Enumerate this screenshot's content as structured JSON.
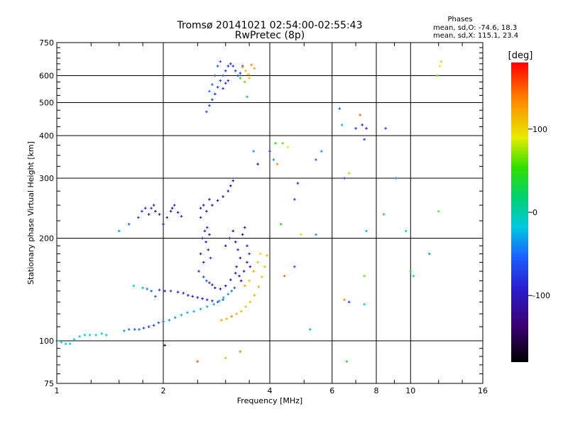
{
  "chart_data": {
    "type": "scatter",
    "title": "Tromsø 20141021 02:54:00-02:55:43",
    "subtitle": "RwPretec (8p)",
    "xlabel": "Frequency [MHz]",
    "ylabel": "Stationary phase Virtual Height [km]",
    "x_scale": "log",
    "y_scale": "log",
    "xlim": [
      1,
      16
    ],
    "ylim": [
      75,
      750
    ],
    "grid": true,
    "x_ticks": [
      "1",
      "2",
      "4",
      "6",
      "8",
      "10",
      "16"
    ],
    "y_ticks": [
      "75",
      "100",
      "200",
      "300",
      "400",
      "500",
      "600",
      "750"
    ],
    "phases": {
      "title": "Phases",
      "lines": [
        "mean, sd,O: -74.6, 18.3",
        "mean, sd,X: 115.1, 23.4"
      ]
    },
    "colorbar": {
      "label": "[deg]",
      "range": [
        -180,
        180
      ],
      "ticks": [
        "100",
        "0",
        "-100"
      ],
      "colors": [
        "#000000",
        "#3a0070",
        "#2a1fd0",
        "#1a5fff",
        "#00c8e0",
        "#00d070",
        "#30e000",
        "#e8ec00",
        "#ff8c00",
        "#ff0000"
      ]
    },
    "points": [
      [
        1.0,
        100,
        -20
      ],
      [
        1.03,
        99,
        -20
      ],
      [
        1.06,
        98,
        -20
      ],
      [
        1.09,
        98,
        -20
      ],
      [
        1.12,
        101,
        -20
      ],
      [
        1.16,
        103,
        -20
      ],
      [
        1.2,
        104,
        -20
      ],
      [
        1.24,
        104,
        -20
      ],
      [
        1.29,
        104,
        -20
      ],
      [
        1.34,
        105,
        -20
      ],
      [
        1.38,
        104,
        -20
      ],
      [
        1.55,
        107,
        -40
      ],
      [
        1.6,
        108,
        -50
      ],
      [
        1.66,
        108,
        -60
      ],
      [
        1.71,
        108,
        -60
      ],
      [
        1.76,
        109,
        -70
      ],
      [
        1.82,
        110,
        -80
      ],
      [
        1.88,
        111,
        -80
      ],
      [
        1.94,
        113,
        -70
      ],
      [
        2.0,
        114,
        -60
      ],
      [
        2.08,
        115,
        -40
      ],
      [
        2.16,
        117,
        -40
      ],
      [
        2.25,
        119,
        -30
      ],
      [
        2.34,
        121,
        -30
      ],
      [
        2.44,
        122,
        -30
      ],
      [
        2.55,
        124,
        -30
      ],
      [
        2.66,
        126,
        -30
      ],
      [
        2.78,
        128,
        -30
      ],
      [
        2.88,
        131,
        -30
      ],
      [
        2.96,
        134,
        -30
      ],
      [
        3.05,
        137,
        -40
      ],
      [
        3.12,
        140,
        -50
      ],
      [
        3.18,
        143,
        -70
      ],
      [
        1.65,
        145,
        -10
      ],
      [
        1.75,
        143,
        -30
      ],
      [
        1.8,
        142,
        -50
      ],
      [
        1.85,
        140,
        -60
      ],
      [
        1.9,
        135,
        -70
      ],
      [
        1.95,
        141,
        -80
      ],
      [
        2.02,
        140,
        -90
      ],
      [
        2.1,
        140,
        -80
      ],
      [
        2.2,
        139,
        -90
      ],
      [
        2.28,
        138,
        -95
      ],
      [
        2.35,
        136,
        -100
      ],
      [
        2.42,
        135,
        -110
      ],
      [
        2.5,
        134,
        -100
      ],
      [
        2.58,
        133,
        -100
      ],
      [
        2.66,
        132,
        -90
      ],
      [
        2.75,
        131,
        -80
      ],
      [
        2.85,
        130,
        -70
      ],
      [
        2.95,
        132,
        -60
      ],
      [
        2.6,
        154,
        -80
      ],
      [
        2.65,
        150,
        -60
      ],
      [
        2.7,
        148,
        -90
      ],
      [
        2.75,
        146,
        -100
      ],
      [
        2.8,
        143,
        -110
      ],
      [
        2.9,
        142,
        -110
      ],
      [
        3.0,
        145,
        -110
      ],
      [
        3.1,
        151,
        -110
      ],
      [
        3.2,
        158,
        -110
      ],
      [
        2.0,
        220,
        -110
      ],
      [
        2.05,
        230,
        -90
      ],
      [
        1.85,
        245,
        -80
      ],
      [
        1.9,
        240,
        -110
      ],
      [
        1.95,
        235,
        -100
      ],
      [
        2.1,
        240,
        -120
      ],
      [
        2.2,
        238,
        -110
      ],
      [
        1.88,
        250,
        -100
      ],
      [
        1.82,
        235,
        -110
      ],
      [
        2.15,
        250,
        -95
      ],
      [
        2.25,
        232,
        -90
      ],
      [
        2.12,
        245,
        -120
      ],
      [
        1.78,
        245,
        -90
      ],
      [
        1.74,
        240,
        -90
      ],
      [
        1.7,
        230,
        -80
      ],
      [
        1.6,
        220,
        -60
      ],
      [
        1.5,
        210,
        -40
      ],
      [
        2.55,
        230,
        -90
      ],
      [
        2.65,
        240,
        -100
      ],
      [
        2.75,
        250,
        -110
      ],
      [
        2.85,
        258,
        -110
      ],
      [
        2.95,
        265,
        -110
      ],
      [
        3.05,
        275,
        -110
      ],
      [
        3.1,
        285,
        -120
      ],
      [
        3.15,
        295,
        -110
      ],
      [
        2.6,
        250,
        -100
      ],
      [
        2.7,
        260,
        -110
      ],
      [
        2.55,
        245,
        -95
      ],
      [
        2.58,
        200,
        -110
      ],
      [
        2.62,
        210,
        -100
      ],
      [
        2.66,
        215,
        -90
      ],
      [
        2.7,
        205,
        -110
      ],
      [
        2.64,
        195,
        -100
      ],
      [
        2.68,
        185,
        -90
      ],
      [
        2.72,
        175,
        -80
      ],
      [
        2.6,
        170,
        -100
      ],
      [
        2.55,
        180,
        -100
      ],
      [
        2.52,
        160,
        -90
      ],
      [
        3.0,
        190,
        -110
      ],
      [
        3.08,
        200,
        -110
      ],
      [
        3.15,
        210,
        -120
      ],
      [
        3.2,
        195,
        -110
      ],
      [
        3.25,
        185,
        -100
      ],
      [
        3.3,
        175,
        -110
      ],
      [
        3.35,
        205,
        -120
      ],
      [
        3.4,
        215,
        -110
      ],
      [
        3.45,
        190,
        -100
      ],
      [
        3.5,
        180,
        -90
      ],
      [
        3.22,
        165,
        -100
      ],
      [
        3.28,
        155,
        -110
      ],
      [
        3.32,
        150,
        -120
      ],
      [
        3.38,
        160,
        -110
      ],
      [
        3.45,
        170,
        -100
      ],
      [
        3.52,
        165,
        -110
      ],
      [
        2.65,
        470,
        -70
      ],
      [
        2.7,
        490,
        -80
      ],
      [
        2.75,
        510,
        -80
      ],
      [
        2.8,
        530,
        -90
      ],
      [
        2.85,
        555,
        -80
      ],
      [
        2.9,
        580,
        -80
      ],
      [
        2.95,
        600,
        -70
      ],
      [
        3.0,
        620,
        -80
      ],
      [
        3.05,
        640,
        -80
      ],
      [
        3.1,
        650,
        -90
      ],
      [
        3.15,
        640,
        -80
      ],
      [
        3.2,
        620,
        -80
      ],
      [
        3.25,
        600,
        -90
      ],
      [
        3.3,
        610,
        -80
      ],
      [
        3.35,
        640,
        -80
      ],
      [
        2.7,
        540,
        -50
      ],
      [
        2.75,
        565,
        -60
      ],
      [
        2.8,
        600,
        -70
      ],
      [
        2.85,
        640,
        -60
      ],
      [
        2.9,
        660,
        -70
      ],
      [
        2.95,
        550,
        -90
      ],
      [
        3.0,
        570,
        -90
      ],
      [
        3.05,
        580,
        -90
      ],
      [
        2.92,
        115,
        120
      ],
      [
        3.02,
        116,
        120
      ],
      [
        3.12,
        118,
        130
      ],
      [
        3.22,
        120,
        120
      ],
      [
        3.32,
        122,
        110
      ],
      [
        3.42,
        126,
        110
      ],
      [
        3.52,
        130,
        110
      ],
      [
        3.62,
        136,
        120
      ],
      [
        3.72,
        144,
        120
      ],
      [
        3.8,
        154,
        110
      ],
      [
        3.87,
        165,
        110
      ],
      [
        3.93,
        178,
        110
      ],
      [
        3.4,
        145,
        120
      ],
      [
        3.5,
        150,
        110
      ],
      [
        3.6,
        160,
        120
      ],
      [
        3.7,
        170,
        110
      ],
      [
        3.76,
        180,
        100
      ],
      [
        3.35,
        635,
        120
      ],
      [
        3.42,
        620,
        110
      ],
      [
        3.48,
        605,
        120
      ],
      [
        3.55,
        645,
        130
      ],
      [
        3.62,
        630,
        120
      ],
      [
        3.5,
        590,
        110
      ],
      [
        3.3,
        590,
        40
      ],
      [
        3.4,
        575,
        60
      ],
      [
        3.45,
        520,
        20
      ],
      [
        3.6,
        360,
        -40
      ],
      [
        3.7,
        330,
        -120
      ],
      [
        4.0,
        360,
        -90
      ],
      [
        4.1,
        340,
        -40
      ],
      [
        4.15,
        380,
        40
      ],
      [
        4.2,
        330,
        130
      ],
      [
        4.35,
        380,
        60
      ],
      [
        4.5,
        370,
        90
      ],
      [
        4.7,
        260,
        -80
      ],
      [
        4.8,
        290,
        -90
      ],
      [
        5.4,
        340,
        -60
      ],
      [
        5.6,
        360,
        -40
      ],
      [
        6.3,
        480,
        -60
      ],
      [
        6.4,
        430,
        -30
      ],
      [
        6.5,
        300,
        -80
      ],
      [
        6.7,
        310,
        110
      ],
      [
        7.0,
        420,
        -80
      ],
      [
        7.2,
        460,
        140
      ],
      [
        7.3,
        430,
        -100
      ],
      [
        7.4,
        390,
        -80
      ],
      [
        7.5,
        420,
        -100
      ],
      [
        8.5,
        420,
        -80
      ],
      [
        9.1,
        300,
        -50
      ],
      [
        9.7,
        210,
        -20
      ],
      [
        10.0,
        160,
        40
      ],
      [
        10.2,
        155,
        -20
      ],
      [
        11.3,
        180,
        -40
      ],
      [
        12.0,
        240,
        60
      ],
      [
        11.9,
        600,
        50
      ],
      [
        12.1,
        640,
        90
      ],
      [
        12.2,
        660,
        80
      ],
      [
        2.5,
        87,
        150
      ],
      [
        3.0,
        89,
        70
      ],
      [
        3.3,
        93,
        50
      ],
      [
        2.02,
        97,
        -140
      ],
      [
        4.4,
        155,
        140
      ],
      [
        4.7,
        165,
        -70
      ],
      [
        5.2,
        108,
        -30
      ],
      [
        6.5,
        132,
        130
      ],
      [
        6.7,
        130,
        -80
      ],
      [
        7.4,
        128,
        -20
      ],
      [
        7.4,
        155,
        60
      ],
      [
        6.6,
        87,
        40
      ],
      [
        4.9,
        205,
        80
      ],
      [
        5.4,
        205,
        -40
      ],
      [
        7.5,
        210,
        -30
      ],
      [
        4.3,
        220,
        40
      ],
      [
        8.4,
        235,
        40
      ]
    ]
  }
}
